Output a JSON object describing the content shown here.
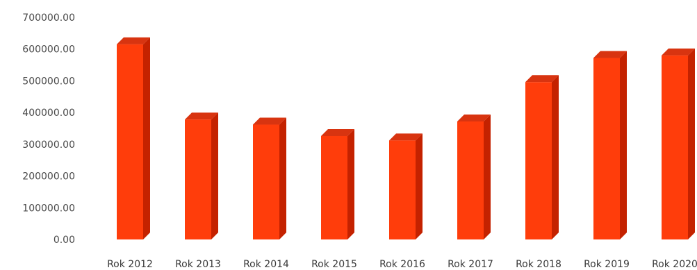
{
  "chart_data": {
    "type": "bar",
    "style": "3d-column",
    "categories": [
      "Rok 2012",
      "Rok 2013",
      "Rok 2014",
      "Rok 2015",
      "Rok 2016",
      "Rok 2017",
      "Rok 2018",
      "Rok 2019",
      "Rok 2020"
    ],
    "values": [
      615000,
      378000,
      362000,
      326000,
      312000,
      372000,
      496000,
      572000,
      580000
    ],
    "y_ticks": [
      "0.00",
      "100000.00",
      "200000.00",
      "300000.00",
      "400000.00",
      "500000.00",
      "600000.00",
      "700000.00"
    ],
    "ylim": [
      0,
      700000
    ],
    "title": "",
    "xlabel": "",
    "ylabel": "",
    "grid": false,
    "legend": "none",
    "colors": {
      "bar_front": "#ff3d0b",
      "bar_side": "#c42200",
      "bar_top": "#d83410",
      "text": "#444444"
    }
  }
}
